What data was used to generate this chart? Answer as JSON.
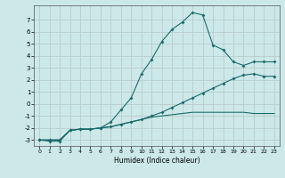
{
  "xlabel": "Humidex (Indice chaleur)",
  "bg_color": "#cce8e8",
  "grid_color": "#b8cccc",
  "line_color": "#1a6b6b",
  "xlim": [
    -0.5,
    23.5
  ],
  "ylim": [
    -3.5,
    8.2
  ],
  "xticks": [
    0,
    1,
    2,
    3,
    4,
    5,
    6,
    7,
    8,
    9,
    10,
    11,
    12,
    13,
    14,
    15,
    16,
    17,
    18,
    19,
    20,
    21,
    22,
    23
  ],
  "yticks": [
    -3,
    -2,
    -1,
    0,
    1,
    2,
    3,
    4,
    5,
    6,
    7
  ],
  "line1_x": [
    0,
    1,
    2,
    3,
    4,
    5,
    6,
    7,
    8,
    9,
    10,
    11,
    12,
    13,
    14,
    15,
    16,
    17,
    18,
    19,
    20,
    21,
    22,
    23
  ],
  "line1_y": [
    -3.0,
    -3.1,
    -3.1,
    -2.2,
    -2.1,
    -2.1,
    -2.0,
    -1.5,
    -0.5,
    0.5,
    2.5,
    3.7,
    5.2,
    6.2,
    6.8,
    7.6,
    7.4,
    4.9,
    4.5,
    3.5,
    3.2,
    3.5,
    3.5,
    3.5
  ],
  "line2_x": [
    0,
    1,
    2,
    3,
    4,
    5,
    6,
    7,
    8,
    9,
    10,
    11,
    12,
    13,
    14,
    15,
    16,
    17,
    18,
    19,
    20,
    21,
    22,
    23
  ],
  "line2_y": [
    -3.0,
    -3.0,
    -3.0,
    -2.2,
    -2.1,
    -2.1,
    -2.0,
    -1.9,
    -1.7,
    -1.5,
    -1.3,
    -1.0,
    -0.7,
    -0.3,
    0.1,
    0.5,
    0.9,
    1.3,
    1.7,
    2.1,
    2.4,
    2.5,
    2.3,
    2.3
  ],
  "line3_x": [
    0,
    1,
    2,
    3,
    4,
    5,
    6,
    7,
    8,
    9,
    10,
    11,
    12,
    13,
    14,
    15,
    16,
    17,
    18,
    19,
    20,
    21,
    22,
    23
  ],
  "line3_y": [
    -3.0,
    -3.0,
    -3.0,
    -2.2,
    -2.1,
    -2.1,
    -2.0,
    -1.9,
    -1.7,
    -1.5,
    -1.3,
    -1.1,
    -1.0,
    -0.9,
    -0.8,
    -0.7,
    -0.7,
    -0.7,
    -0.7,
    -0.7,
    -0.7,
    -0.8,
    -0.8,
    -0.8
  ]
}
